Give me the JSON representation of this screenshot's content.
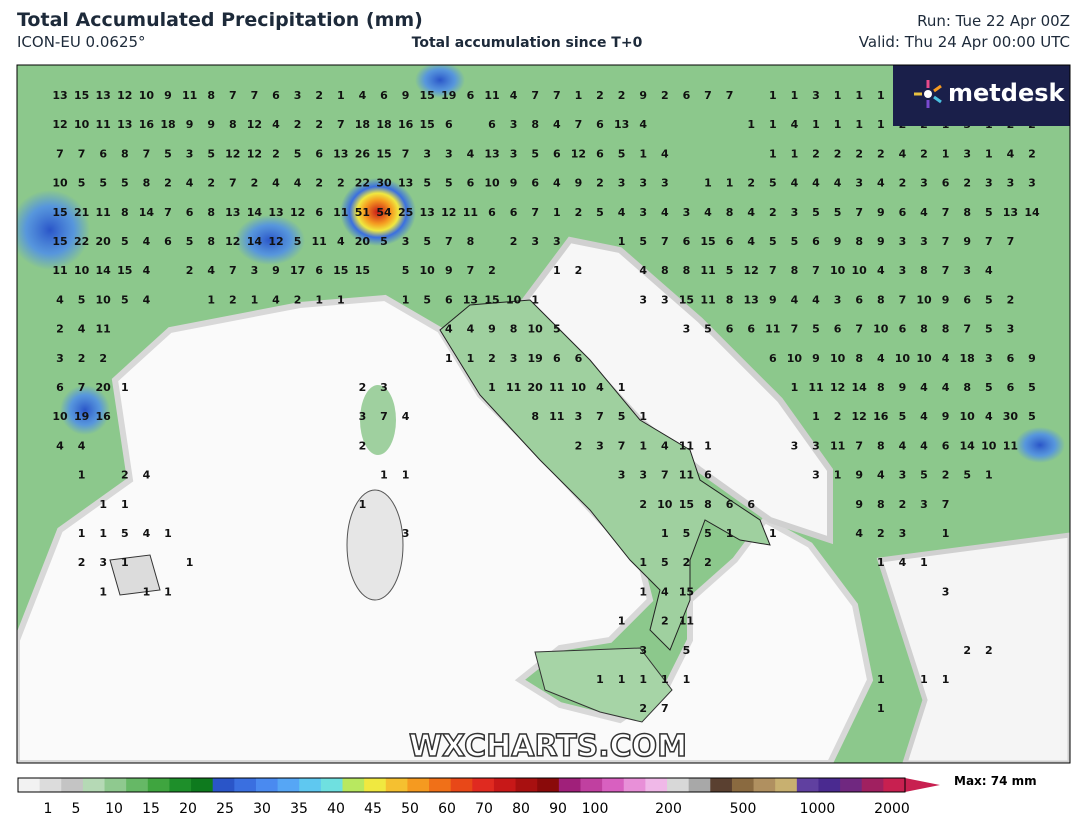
{
  "header": {
    "title": "Total Accumulated Precipitation (mm)",
    "model": "ICON-EU 0.0625°",
    "subtitle": "Total accumulation since T+0",
    "run": "Run: Tue 22 Apr 00Z",
    "valid": "Valid: Thu 24 Apr 00:00 UTC"
  },
  "logo": "metdesk",
  "watermark": "WXCHARTS.COM",
  "map": {
    "labels": [
      [
        13,
        15,
        13,
        12,
        10,
        9,
        11,
        8,
        7,
        7,
        6,
        3,
        2,
        1,
        4,
        6,
        9,
        15,
        19,
        6,
        11,
        4,
        7,
        7,
        1,
        2,
        2,
        9,
        2,
        6,
        7,
        7,
        null,
        1,
        1,
        3,
        1,
        1,
        1
      ],
      [
        12,
        10,
        11,
        13,
        16,
        18,
        9,
        9,
        8,
        12,
        4,
        2,
        2,
        7,
        18,
        18,
        16,
        15,
        6,
        null,
        6,
        3,
        8,
        4,
        7,
        6,
        13,
        4,
        null,
        null,
        null,
        null,
        1,
        1,
        4,
        1,
        1,
        1,
        1,
        2,
        2,
        1,
        3,
        1,
        2,
        2
      ],
      [
        7,
        7,
        6,
        8,
        7,
        5,
        3,
        5,
        12,
        12,
        2,
        5,
        6,
        13,
        26,
        15,
        7,
        3,
        3,
        4,
        13,
        3,
        5,
        6,
        12,
        6,
        5,
        1,
        4,
        null,
        null,
        null,
        null,
        1,
        1,
        2,
        2,
        2,
        2,
        4,
        2,
        1,
        3,
        1,
        4,
        2
      ],
      [
        10,
        5,
        5,
        5,
        8,
        2,
        4,
        2,
        7,
        2,
        4,
        4,
        2,
        2,
        22,
        30,
        13,
        5,
        5,
        6,
        10,
        9,
        6,
        4,
        9,
        2,
        3,
        3,
        3,
        null,
        1,
        1,
        2,
        5,
        4,
        4,
        4,
        3,
        4,
        2,
        3,
        6,
        2,
        3,
        3,
        3
      ],
      [
        15,
        21,
        11,
        8,
        14,
        7,
        6,
        8,
        13,
        14,
        13,
        12,
        6,
        11,
        51,
        54,
        25,
        13,
        12,
        11,
        6,
        6,
        7,
        1,
        2,
        5,
        4,
        3,
        4,
        3,
        4,
        8,
        4,
        2,
        3,
        5,
        5,
        7,
        9,
        6,
        4,
        7,
        8,
        5,
        13,
        14
      ],
      [
        15,
        22,
        20,
        5,
        4,
        6,
        5,
        8,
        12,
        14,
        12,
        5,
        11,
        4,
        20,
        5,
        3,
        5,
        7,
        8,
        null,
        2,
        3,
        3,
        null,
        null,
        1,
        5,
        7,
        6,
        15,
        6,
        4,
        5,
        5,
        6,
        9,
        8,
        9,
        3,
        3,
        7,
        9,
        7,
        7
      ],
      [
        11,
        10,
        14,
        15,
        4,
        null,
        2,
        4,
        7,
        3,
        9,
        17,
        6,
        15,
        15,
        null,
        5,
        10,
        9,
        7,
        2,
        null,
        null,
        1,
        2,
        null,
        null,
        4,
        8,
        8,
        11,
        5,
        12,
        7,
        8,
        7,
        10,
        10,
        4,
        3,
        8,
        7,
        3,
        4
      ],
      [
        4,
        5,
        10,
        5,
        4,
        null,
        null,
        1,
        2,
        1,
        4,
        2,
        1,
        1,
        null,
        null,
        1,
        5,
        6,
        13,
        15,
        10,
        1,
        null,
        null,
        null,
        null,
        3,
        3,
        15,
        11,
        8,
        13,
        9,
        4,
        4,
        3,
        6,
        8,
        7,
        10,
        9,
        6,
        5,
        2
      ],
      [
        2,
        4,
        11,
        null,
        null,
        null,
        null,
        null,
        null,
        null,
        null,
        null,
        null,
        null,
        null,
        null,
        null,
        null,
        4,
        4,
        9,
        8,
        10,
        5,
        null,
        null,
        null,
        null,
        null,
        3,
        5,
        6,
        6,
        11,
        7,
        5,
        6,
        7,
        10,
        6,
        8,
        8,
        7,
        5,
        3
      ],
      [
        3,
        2,
        2,
        null,
        null,
        null,
        null,
        null,
        null,
        null,
        null,
        null,
        null,
        null,
        null,
        null,
        null,
        null,
        1,
        1,
        2,
        3,
        19,
        6,
        6,
        null,
        null,
        null,
        null,
        null,
        null,
        null,
        null,
        6,
        10,
        9,
        10,
        8,
        4,
        10,
        10,
        4,
        18,
        3,
        6,
        9
      ],
      [
        6,
        7,
        20,
        1,
        null,
        null,
        null,
        null,
        null,
        null,
        null,
        null,
        null,
        null,
        2,
        3,
        null,
        null,
        null,
        null,
        1,
        11,
        20,
        11,
        10,
        4,
        1,
        null,
        null,
        null,
        null,
        null,
        null,
        null,
        1,
        11,
        12,
        14,
        8,
        9,
        4,
        4,
        8,
        5,
        6,
        5
      ],
      [
        10,
        19,
        16,
        null,
        null,
        null,
        null,
        null,
        null,
        null,
        null,
        null,
        null,
        null,
        3,
        7,
        4,
        null,
        null,
        null,
        null,
        null,
        8,
        11,
        3,
        7,
        5,
        1,
        null,
        null,
        null,
        null,
        null,
        null,
        null,
        1,
        2,
        12,
        16,
        5,
        4,
        9,
        10,
        4,
        30,
        5
      ],
      [
        4,
        4,
        null,
        null,
        null,
        null,
        null,
        null,
        null,
        null,
        null,
        null,
        null,
        null,
        2,
        null,
        null,
        null,
        null,
        null,
        null,
        null,
        null,
        null,
        2,
        3,
        7,
        1,
        4,
        11,
        1,
        null,
        null,
        null,
        3,
        3,
        11,
        7,
        8,
        4,
        4,
        6,
        14,
        10,
        11
      ],
      [
        null,
        1,
        null,
        2,
        4,
        null,
        null,
        null,
        null,
        null,
        null,
        null,
        null,
        null,
        null,
        1,
        1,
        null,
        null,
        null,
        null,
        null,
        null,
        null,
        null,
        null,
        3,
        3,
        7,
        11,
        6,
        null,
        null,
        null,
        null,
        3,
        1,
        9,
        4,
        3,
        5,
        2,
        5,
        1
      ],
      [
        null,
        null,
        1,
        1,
        null,
        null,
        null,
        null,
        null,
        null,
        null,
        null,
        null,
        null,
        1,
        null,
        null,
        null,
        null,
        null,
        null,
        null,
        null,
        null,
        null,
        null,
        null,
        2,
        10,
        15,
        8,
        6,
        6,
        null,
        null,
        null,
        null,
        9,
        8,
        2,
        3,
        7
      ],
      [
        null,
        1,
        1,
        5,
        4,
        1,
        null,
        null,
        null,
        null,
        null,
        null,
        null,
        null,
        null,
        null,
        3,
        null,
        null,
        null,
        null,
        null,
        null,
        null,
        null,
        null,
        null,
        null,
        1,
        5,
        5,
        1,
        null,
        1,
        null,
        null,
        null,
        4,
        2,
        3,
        null,
        1
      ],
      [
        null,
        2,
        3,
        1,
        null,
        null,
        1,
        null,
        null,
        null,
        null,
        null,
        null,
        null,
        null,
        null,
        null,
        null,
        null,
        null,
        null,
        null,
        null,
        null,
        null,
        null,
        null,
        1,
        5,
        2,
        2,
        null,
        null,
        null,
        null,
        null,
        null,
        null,
        1,
        4,
        1
      ],
      [
        null,
        null,
        1,
        null,
        1,
        1,
        null,
        null,
        null,
        null,
        null,
        null,
        null,
        null,
        null,
        null,
        null,
        null,
        null,
        null,
        null,
        null,
        null,
        null,
        null,
        null,
        null,
        1,
        4,
        15,
        null,
        null,
        null,
        null,
        null,
        null,
        null,
        null,
        null,
        null,
        null,
        3
      ],
      [
        null,
        null,
        null,
        null,
        null,
        null,
        null,
        null,
        null,
        null,
        null,
        null,
        null,
        null,
        null,
        null,
        null,
        null,
        null,
        null,
        null,
        null,
        null,
        null,
        null,
        null,
        1,
        null,
        2,
        11
      ],
      [
        null,
        null,
        null,
        null,
        null,
        null,
        null,
        null,
        null,
        null,
        null,
        null,
        null,
        null,
        null,
        null,
        null,
        null,
        null,
        null,
        null,
        null,
        null,
        null,
        null,
        null,
        null,
        3,
        null,
        5,
        null,
        null,
        null,
        null,
        null,
        null,
        null,
        null,
        null,
        null,
        null,
        null,
        2,
        2
      ],
      [
        null,
        null,
        null,
        null,
        null,
        null,
        null,
        null,
        null,
        null,
        null,
        null,
        null,
        null,
        null,
        null,
        null,
        null,
        null,
        null,
        null,
        null,
        null,
        null,
        null,
        1,
        1,
        1,
        1,
        1,
        null,
        null,
        null,
        null,
        null,
        null,
        null,
        null,
        1,
        null,
        1,
        1
      ],
      [
        null,
        null,
        null,
        null,
        null,
        null,
        null,
        null,
        null,
        null,
        null,
        null,
        null,
        null,
        null,
        null,
        null,
        null,
        null,
        null,
        null,
        null,
        null,
        null,
        null,
        null,
        null,
        2,
        7,
        null,
        null,
        null,
        null,
        null,
        null,
        null,
        null,
        null,
        1
      ]
    ]
  },
  "colorbar": {
    "ticks": [
      1,
      5,
      10,
      15,
      20,
      25,
      30,
      35,
      40,
      45,
      50,
      60,
      70,
      80,
      90,
      100,
      200,
      500,
      1000,
      2000
    ],
    "colors": [
      "#f2f2f2",
      "#dcdcdc",
      "#c4c4c4",
      "#b5d9b5",
      "#8fc98f",
      "#66b866",
      "#3fa53f",
      "#1e8f2a",
      "#0e7a1e",
      "#2a55c8",
      "#3a6fe0",
      "#4a8af0",
      "#56a6f5",
      "#5fc8f0",
      "#6fe0e0",
      "#b8e860",
      "#f0e840",
      "#f5c030",
      "#f59a20",
      "#f07018",
      "#e84818",
      "#e02a20",
      "#c81818",
      "#a81010",
      "#8a0a0a",
      "#a0207a",
      "#c040a0",
      "#d860c0",
      "#e890d8",
      "#f0b8e8",
      "#d8d8d8",
      "#a8a8a8",
      "#5a4030",
      "#8a6a40",
      "#b09060",
      "#c8b070",
      "#6040a0",
      "#4a2a90",
      "#702880",
      "#a02060",
      "#c82050"
    ],
    "max_label": "Max: 74 mm"
  }
}
